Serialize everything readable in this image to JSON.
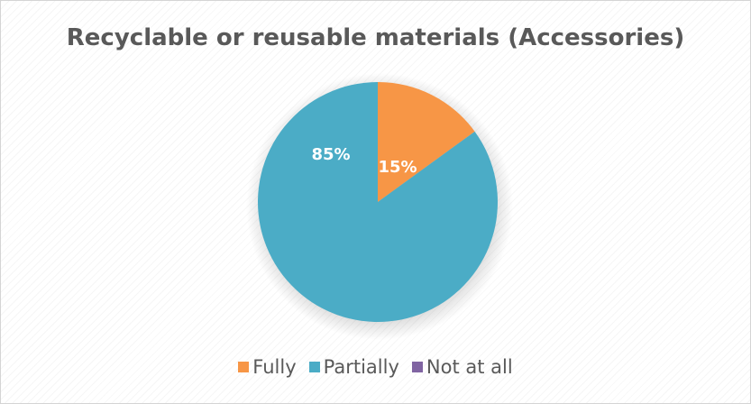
{
  "chart_data": {
    "type": "pie",
    "title": "Recyclable or reusable materials (Accessories)",
    "categories": [
      "Fully",
      "Partially",
      "Not at all"
    ],
    "values": [
      15,
      85,
      0
    ],
    "data_labels": [
      "15%",
      "85%",
      ""
    ],
    "colors": [
      "#f79646",
      "#4bacc6",
      "#8064a2"
    ],
    "legend_position": "bottom",
    "grid": false
  }
}
